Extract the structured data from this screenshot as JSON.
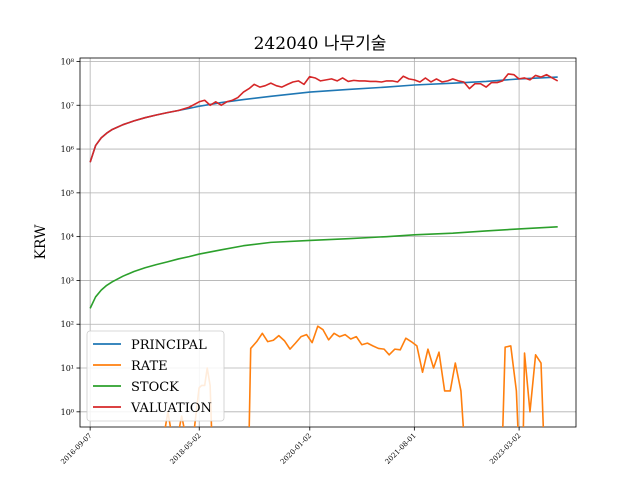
{
  "chart_data": {
    "type": "line",
    "title": "242040 나무기술",
    "xlabel": "",
    "ylabel": "KRW",
    "yscale": "log",
    "ylim": [
      0.45,
      120000000
    ],
    "xlim": [
      "2016-07-13",
      "2024-01-10"
    ],
    "grid": true,
    "legend_position": "lower-left",
    "x_ticks": [
      "2016-09-07",
      "2018-05-02",
      "2020-01-02",
      "2021-08-01",
      "2023-03-02"
    ],
    "y_ticks": [
      {
        "value": 1,
        "label": "10⁰"
      },
      {
        "value": 10,
        "label": "10¹"
      },
      {
        "value": 100,
        "label": "10²"
      },
      {
        "value": 1000,
        "label": "10³"
      },
      {
        "value": 10000,
        "label": "10⁴"
      },
      {
        "value": 100000,
        "label": "10⁵"
      },
      {
        "value": 1000000,
        "label": "10⁶"
      },
      {
        "value": 10000000,
        "label": "10⁷"
      },
      {
        "value": 100000000,
        "label": "10⁸"
      }
    ],
    "series": [
      {
        "name": "PRINCIPAL",
        "color": "#1f77b4",
        "points": [
          [
            "2016-09-07",
            500000
          ],
          [
            "2016-10-07",
            1200000
          ],
          [
            "2016-11-07",
            1800000
          ],
          [
            "2016-12-07",
            2300000
          ],
          [
            "2017-01-07",
            2800000
          ],
          [
            "2017-03-07",
            3600000
          ],
          [
            "2017-05-07",
            4400000
          ],
          [
            "2017-07-07",
            5200000
          ],
          [
            "2017-09-07",
            6000000
          ],
          [
            "2017-11-07",
            6800000
          ],
          [
            "2018-01-07",
            7600000
          ],
          [
            "2018-03-07",
            8500000
          ],
          [
            "2018-05-02",
            9500000
          ],
          [
            "2018-09-01",
            11500000
          ],
          [
            "2019-01-01",
            13500000
          ],
          [
            "2019-06-01",
            16000000
          ],
          [
            "2020-01-02",
            20000000
          ],
          [
            "2020-08-01",
            23000000
          ],
          [
            "2021-03-01",
            26000000
          ],
          [
            "2021-08-01",
            29000000
          ],
          [
            "2022-03-01",
            32000000
          ],
          [
            "2022-09-01",
            35000000
          ],
          [
            "2023-03-02",
            40000000
          ],
          [
            "2023-10-01",
            44000000
          ]
        ]
      },
      {
        "name": "RATE",
        "color": "#ff7f0e",
        "segments": [
          [
            [
              "2017-10-20",
              0.3
            ],
            [
              "2017-11-10",
              1
            ],
            [
              "2017-12-01",
              0.3
            ]
          ],
          [
            [
              "2018-01-05",
              0.3
            ],
            [
              "2018-01-25",
              0.8
            ],
            [
              "2018-02-15",
              0.3
            ]
          ],
          [
            [
              "2018-04-01",
              0.3
            ],
            [
              "2018-05-01",
              3.5
            ],
            [
              "2018-05-15",
              4
            ],
            [
              "2018-06-01",
              4
            ],
            [
              "2018-06-15",
              10
            ],
            [
              "2018-07-01",
              4
            ],
            [
              "2018-07-10",
              0.3
            ]
          ],
          [
            [
              "2019-02-01",
              0.3
            ],
            [
              "2019-02-10",
              28
            ],
            [
              "2019-03-15",
              40
            ],
            [
              "2019-04-15",
              62
            ],
            [
              "2019-05-15",
              40
            ],
            [
              "2019-06-15",
              43
            ],
            [
              "2019-07-15",
              55
            ],
            [
              "2019-08-15",
              42
            ],
            [
              "2019-09-15",
              27
            ],
            [
              "2019-10-15",
              37
            ],
            [
              "2019-11-15",
              52
            ],
            [
              "2019-12-15",
              58
            ],
            [
              "2020-01-15",
              38
            ],
            [
              "2020-02-15",
              90
            ],
            [
              "2020-03-15",
              75
            ],
            [
              "2020-04-15",
              44
            ],
            [
              "2020-05-15",
              62
            ],
            [
              "2020-06-15",
              52
            ],
            [
              "2020-07-15",
              58
            ],
            [
              "2020-08-15",
              46
            ],
            [
              "2020-09-15",
              52
            ],
            [
              "2020-10-15",
              34
            ],
            [
              "2020-11-15",
              37
            ],
            [
              "2020-12-15",
              32
            ],
            [
              "2021-01-15",
              28
            ],
            [
              "2021-02-15",
              27
            ],
            [
              "2021-03-15",
              20
            ],
            [
              "2021-04-15",
              27
            ],
            [
              "2021-05-15",
              26
            ],
            [
              "2021-06-15",
              48
            ],
            [
              "2021-07-15",
              40
            ],
            [
              "2021-08-15",
              32
            ],
            [
              "2021-09-15",
              8
            ],
            [
              "2021-10-15",
              27
            ],
            [
              "2021-11-15",
              10
            ],
            [
              "2021-12-15",
              23
            ],
            [
              "2022-01-15",
              3
            ],
            [
              "2022-02-15",
              3
            ],
            [
              "2022-03-15",
              13
            ],
            [
              "2022-04-15",
              3
            ],
            [
              "2022-05-01",
              0.3
            ]
          ],
          [
            [
              "2022-12-01",
              0.3
            ],
            [
              "2022-12-15",
              30
            ],
            [
              "2023-01-15",
              32
            ],
            [
              "2023-02-15",
              3
            ],
            [
              "2023-02-25",
              0.3
            ]
          ],
          [
            [
              "2023-03-25",
              0.3
            ],
            [
              "2023-04-01",
              22
            ],
            [
              "2023-05-01",
              1
            ],
            [
              "2023-06-01",
              20
            ],
            [
              "2023-07-01",
              13
            ],
            [
              "2023-07-15",
              0.3
            ]
          ]
        ]
      },
      {
        "name": "STOCK",
        "color": "#2ca02c",
        "points": [
          [
            "2016-09-07",
            230
          ],
          [
            "2016-10-07",
            420
          ],
          [
            "2016-11-07",
            600
          ],
          [
            "2016-12-07",
            770
          ],
          [
            "2017-01-07",
            930
          ],
          [
            "2017-03-07",
            1250
          ],
          [
            "2017-05-07",
            1600
          ],
          [
            "2017-07-07",
            1950
          ],
          [
            "2017-09-07",
            2300
          ],
          [
            "2017-11-07",
            2650
          ],
          [
            "2018-01-07",
            3100
          ],
          [
            "2018-03-07",
            3500
          ],
          [
            "2018-05-02",
            4000
          ],
          [
            "2018-09-01",
            5000
          ],
          [
            "2019-01-01",
            6200
          ],
          [
            "2019-06-01",
            7400
          ],
          [
            "2020-01-02",
            8200
          ],
          [
            "2020-08-01",
            9000
          ],
          [
            "2021-03-01",
            10000
          ],
          [
            "2021-08-01",
            11000
          ],
          [
            "2022-03-01",
            12000
          ],
          [
            "2022-09-01",
            13500
          ],
          [
            "2023-03-02",
            15000
          ],
          [
            "2023-10-01",
            16800
          ]
        ]
      },
      {
        "name": "VALUATION",
        "color": "#d62728",
        "points": [
          [
            "2016-09-07",
            500000
          ],
          [
            "2016-10-07",
            1200000
          ],
          [
            "2016-11-07",
            1800000
          ],
          [
            "2016-12-07",
            2300000
          ],
          [
            "2017-01-07",
            2800000
          ],
          [
            "2017-03-07",
            3600000
          ],
          [
            "2017-05-07",
            4400000
          ],
          [
            "2017-07-07",
            5200000
          ],
          [
            "2017-09-07",
            6000000
          ],
          [
            "2017-11-07",
            6800000
          ],
          [
            "2018-01-07",
            7600000
          ],
          [
            "2018-03-07",
            9000000
          ],
          [
            "2018-05-02",
            12000000
          ],
          [
            "2018-06-01",
            13000000
          ],
          [
            "2018-07-01",
            10000000
          ],
          [
            "2018-08-01",
            12000000
          ],
          [
            "2018-09-01",
            10000000
          ],
          [
            "2018-10-01",
            12000000
          ],
          [
            "2018-11-01",
            13000000
          ],
          [
            "2018-12-01",
            15000000
          ],
          [
            "2019-01-01",
            20000000
          ],
          [
            "2019-02-01",
            24000000
          ],
          [
            "2019-03-01",
            30000000
          ],
          [
            "2019-04-01",
            26000000
          ],
          [
            "2019-05-01",
            28000000
          ],
          [
            "2019-06-01",
            32000000
          ],
          [
            "2019-07-01",
            28000000
          ],
          [
            "2019-08-01",
            26000000
          ],
          [
            "2019-09-01",
            30000000
          ],
          [
            "2019-10-01",
            34000000
          ],
          [
            "2019-11-01",
            36000000
          ],
          [
            "2019-12-01",
            30000000
          ],
          [
            "2020-01-01",
            45000000
          ],
          [
            "2020-02-01",
            42000000
          ],
          [
            "2020-03-01",
            36000000
          ],
          [
            "2020-04-01",
            38000000
          ],
          [
            "2020-05-01",
            40000000
          ],
          [
            "2020-06-01",
            36000000
          ],
          [
            "2020-07-01",
            42000000
          ],
          [
            "2020-08-01",
            35000000
          ],
          [
            "2020-09-01",
            37000000
          ],
          [
            "2020-10-01",
            36000000
          ],
          [
            "2020-11-01",
            36000000
          ],
          [
            "2020-12-01",
            35000000
          ],
          [
            "2021-01-01",
            35000000
          ],
          [
            "2021-02-01",
            34000000
          ],
          [
            "2021-03-01",
            36000000
          ],
          [
            "2021-04-01",
            36000000
          ],
          [
            "2021-05-01",
            34000000
          ],
          [
            "2021-06-01",
            46000000
          ],
          [
            "2021-07-01",
            40000000
          ],
          [
            "2021-08-01",
            38000000
          ],
          [
            "2021-09-01",
            34000000
          ],
          [
            "2021-10-01",
            42000000
          ],
          [
            "2021-11-01",
            34000000
          ],
          [
            "2021-12-01",
            40000000
          ],
          [
            "2022-01-01",
            34000000
          ],
          [
            "2022-02-01",
            36000000
          ],
          [
            "2022-03-01",
            40000000
          ],
          [
            "2022-04-01",
            36000000
          ],
          [
            "2022-05-01",
            34000000
          ],
          [
            "2022-06-01",
            24000000
          ],
          [
            "2022-07-01",
            31000000
          ],
          [
            "2022-08-01",
            31000000
          ],
          [
            "2022-09-01",
            26000000
          ],
          [
            "2022-10-01",
            33000000
          ],
          [
            "2022-11-01",
            33000000
          ],
          [
            "2022-12-01",
            36000000
          ],
          [
            "2023-01-01",
            52000000
          ],
          [
            "2023-02-01",
            50000000
          ],
          [
            "2023-03-01",
            40000000
          ],
          [
            "2023-04-01",
            42000000
          ],
          [
            "2023-05-01",
            38000000
          ],
          [
            "2023-06-01",
            48000000
          ],
          [
            "2023-07-01",
            44000000
          ],
          [
            "2023-08-01",
            50000000
          ],
          [
            "2023-09-01",
            42000000
          ],
          [
            "2023-10-01",
            36000000
          ]
        ]
      }
    ]
  }
}
